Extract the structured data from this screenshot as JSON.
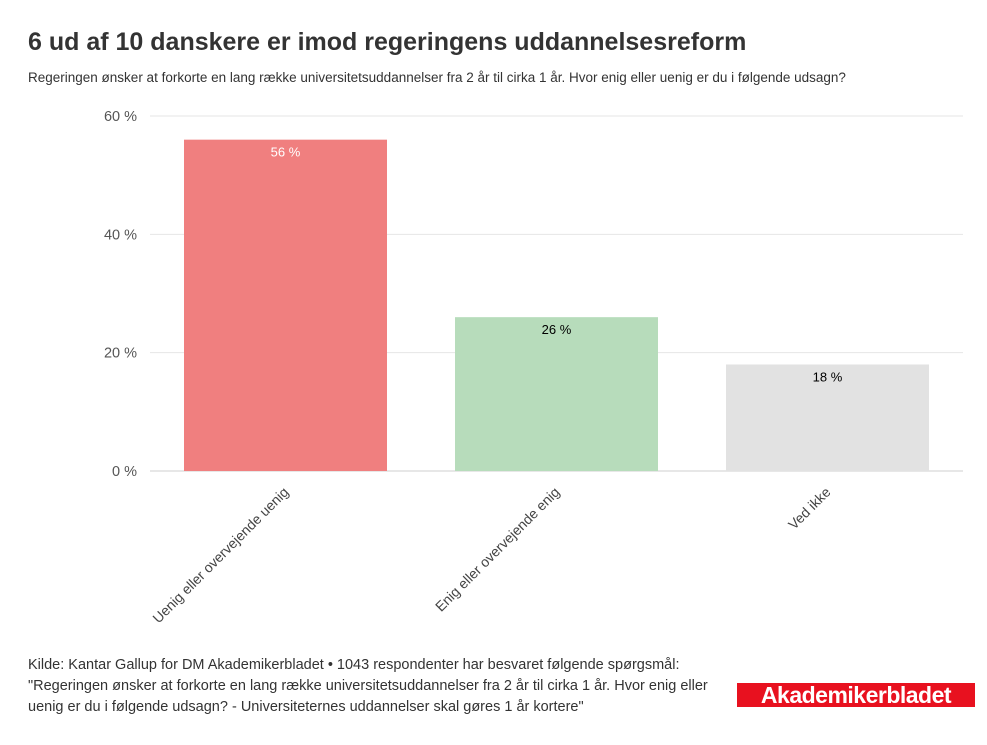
{
  "header": {
    "title": "6 ud af 10 danskere er imod regeringens uddannelsesreform",
    "subtitle": "Regeringen ønsker at forkorte en lang række universitetsuddannelser fra 2 år til cirka 1 år. Hvor enig eller uenig er du i følgende udsagn?"
  },
  "chart_data": {
    "type": "bar",
    "title": "6 ud af 10 danskere er imod regeringens uddannelsesreform",
    "categories": [
      "Uenig eller overvejende uenig",
      "Enig eller overvejende enig",
      "Ved ikke"
    ],
    "values": [
      56,
      26,
      18
    ],
    "data_labels": [
      "56 %",
      "26 %",
      "18 %"
    ],
    "colors": [
      "#f07f7f",
      "#b7dcbb",
      "#e2e2e2"
    ],
    "label_colors": [
      "#ffffff",
      "#000000",
      "#000000"
    ],
    "ylim": [
      0,
      60
    ],
    "yticks": [
      0,
      20,
      40,
      60
    ],
    "ytick_labels": [
      "0 %",
      "20 %",
      "40 %",
      "60 %"
    ],
    "grid": true,
    "xlabel": "",
    "ylabel": ""
  },
  "footer": {
    "source": "Kilde: Kantar Gallup for DM Akademikerbladet • 1043 respondenter har besvaret følgende spørgsmål: \"Regeringen ønsker at forkorte en lang række universitetsuddannelser fra 2 år til cirka 1 år. Hvor enig eller uenig er du i følgende udsagn? - Universiteternes uddannelser skal gøres 1 år kortere\""
  },
  "logo": {
    "text": "Akademikerbladet",
    "color": "#e8111f"
  }
}
